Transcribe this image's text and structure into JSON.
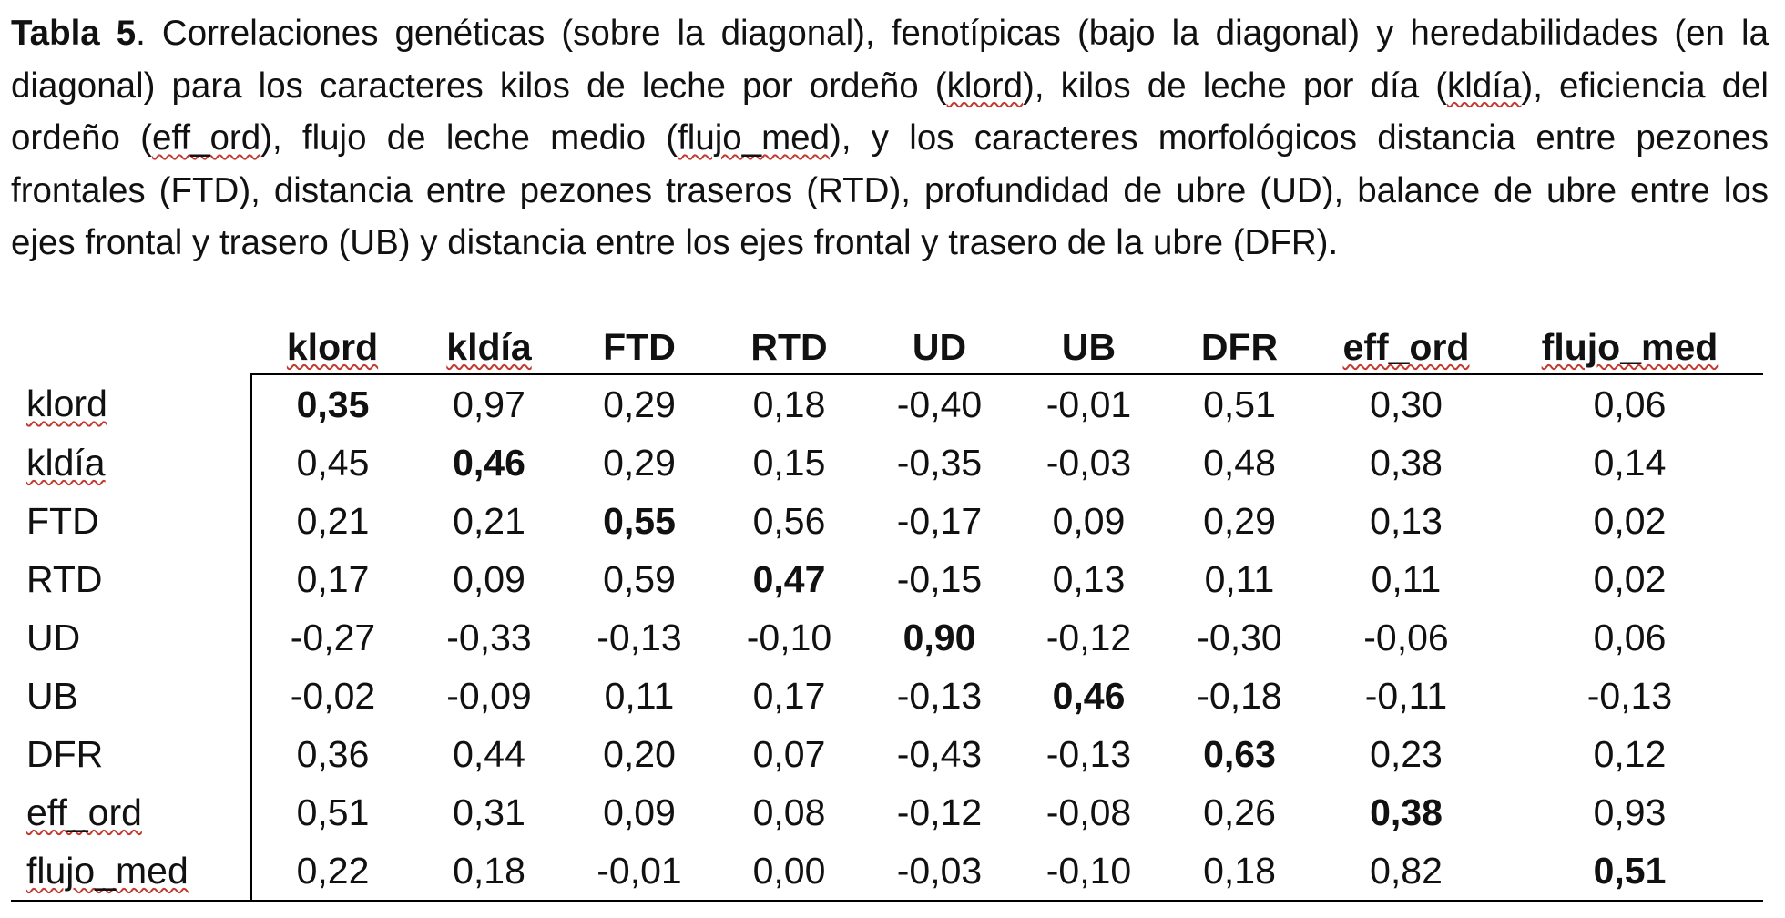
{
  "caption": {
    "label": "Tabla 5",
    "pieces": [
      {
        "text": ". Correlaciones genéticas (sobre la diagonal), fenotípicas (bajo la diagonal) y heredabilidades (en la diagonal) para los caracteres kilos de leche por ordeño (",
        "squiggle": false
      },
      {
        "text": "klord",
        "squiggle": true
      },
      {
        "text": "), kilos de leche por día (",
        "squiggle": false
      },
      {
        "text": "kldía",
        "squiggle": true
      },
      {
        "text": "), eficiencia del ordeño (",
        "squiggle": false
      },
      {
        "text": "eff_ord",
        "squiggle": true
      },
      {
        "text": "), flujo de leche medio (",
        "squiggle": false
      },
      {
        "text": "flujo_med",
        "squiggle": true
      },
      {
        "text": "), y los caracteres morfológicos distancia entre pezones frontales (FTD), distancia entre pezones traseros (RTD), profundidad de ubre (UD), balance de ubre entre los ejes frontal y trasero (UB) y distancia entre los ejes frontal y trasero de la ubre (DFR).",
        "squiggle": false
      }
    ]
  },
  "table": {
    "columns": [
      {
        "label": "klord",
        "squiggle": true
      },
      {
        "label": "kldía",
        "squiggle": true
      },
      {
        "label": "FTD",
        "squiggle": false
      },
      {
        "label": "RTD",
        "squiggle": false
      },
      {
        "label": "UD",
        "squiggle": false
      },
      {
        "label": "UB",
        "squiggle": false
      },
      {
        "label": "DFR",
        "squiggle": false
      },
      {
        "label": "eff_ord",
        "squiggle": true
      },
      {
        "label": "flujo_med",
        "squiggle": true
      }
    ],
    "rows": [
      {
        "label": "klord",
        "squiggle": true,
        "values": [
          "0,35",
          "0,97",
          "0,29",
          "0,18",
          "-0,40",
          "-0,01",
          "0,51",
          "0,30",
          "0,06"
        ]
      },
      {
        "label": "kldía",
        "squiggle": true,
        "values": [
          "0,45",
          "0,46",
          "0,29",
          "0,15",
          "-0,35",
          "-0,03",
          "0,48",
          "0,38",
          "0,14"
        ]
      },
      {
        "label": "FTD",
        "squiggle": false,
        "values": [
          "0,21",
          "0,21",
          "0,55",
          "0,56",
          "-0,17",
          "0,09",
          "0,29",
          "0,13",
          "0,02"
        ]
      },
      {
        "label": "RTD",
        "squiggle": false,
        "values": [
          "0,17",
          "0,09",
          "0,59",
          "0,47",
          "-0,15",
          "0,13",
          "0,11",
          "0,11",
          "0,02"
        ]
      },
      {
        "label": "UD",
        "squiggle": false,
        "values": [
          "-0,27",
          "-0,33",
          "-0,13",
          "-0,10",
          "0,90",
          "-0,12",
          "-0,30",
          "-0,06",
          "0,06"
        ]
      },
      {
        "label": "UB",
        "squiggle": false,
        "values": [
          "-0,02",
          "-0,09",
          "0,11",
          "0,17",
          "-0,13",
          "0,46",
          "-0,18",
          "-0,11",
          "-0,13"
        ]
      },
      {
        "label": "DFR",
        "squiggle": false,
        "values": [
          "0,36",
          "0,44",
          "0,20",
          "0,07",
          "-0,43",
          "-0,13",
          "0,63",
          "0,23",
          "0,12"
        ]
      },
      {
        "label": "eff_ord",
        "squiggle": true,
        "values": [
          "0,51",
          "0,31",
          "0,09",
          "0,08",
          "-0,12",
          "-0,08",
          "0,26",
          "0,38",
          "0,93"
        ]
      },
      {
        "label": "flujo_med",
        "squiggle": true,
        "values": [
          "0,22",
          "0,18",
          "-0,01",
          "0,00",
          "-0,03",
          "-0,10",
          "0,18",
          "0,82",
          "0,51"
        ]
      }
    ]
  }
}
